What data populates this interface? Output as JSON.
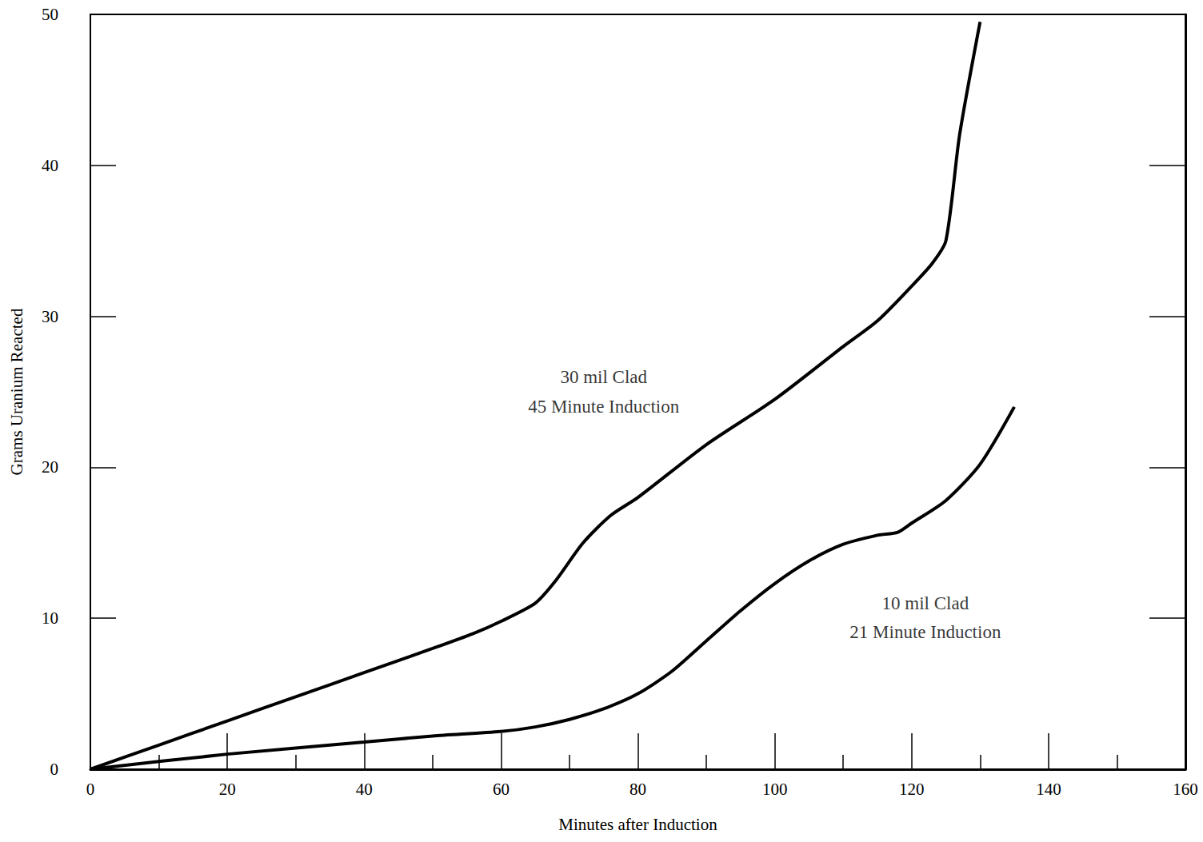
{
  "chart_data": {
    "type": "line",
    "x_label": "Minutes after Induction",
    "y_label": "Grams Uranium Reacted",
    "xlim": [
      0,
      160
    ],
    "xticks": [
      0,
      20,
      40,
      60,
      80,
      100,
      120,
      140,
      160
    ],
    "ylim": [
      0,
      50
    ],
    "yticks": [
      0,
      10,
      20,
      30,
      40,
      50
    ],
    "grid": false,
    "series": [
      {
        "name": "30 mil Clad",
        "color": "#000000",
        "line_style": "solid",
        "x": [
          0,
          10,
          20,
          30,
          40,
          50,
          56,
          60,
          65,
          68,
          72,
          76,
          80,
          90,
          100,
          110,
          115,
          120,
          123,
          125,
          127,
          130
        ],
        "values": [
          0,
          1.6,
          3.2,
          4.8,
          6.4,
          8,
          9,
          9.8,
          11,
          12.5,
          15,
          16.8,
          18,
          21.5,
          24.5,
          28,
          29.7,
          32,
          33.5,
          35,
          42,
          49.5
        ]
      },
      {
        "name": "10 mil Clad",
        "color": "#000000",
        "line_style": "solid",
        "x": [
          0,
          20,
          40,
          50,
          60,
          65,
          70,
          75,
          80,
          85,
          90,
          95,
          100,
          105,
          110,
          115,
          118,
          120,
          125,
          130,
          135
        ],
        "values": [
          0,
          1,
          1.8,
          2.2,
          2.5,
          2.8,
          3.3,
          4,
          5,
          6.5,
          8.5,
          10.5,
          12.3,
          13.8,
          14.9,
          15.5,
          15.7,
          16.3,
          17.8,
          20.2,
          24
        ]
      }
    ],
    "annotations": [
      {
        "text": "30 mil Clad",
        "x": 75,
        "y": 26
      },
      {
        "text": "45 Minute Induction",
        "x": 75,
        "y": 24
      },
      {
        "text": "10 mil Clad",
        "x": 122,
        "y": 11
      },
      {
        "text": "21 Minute Induction",
        "x": 122,
        "y": 9.1
      }
    ]
  }
}
